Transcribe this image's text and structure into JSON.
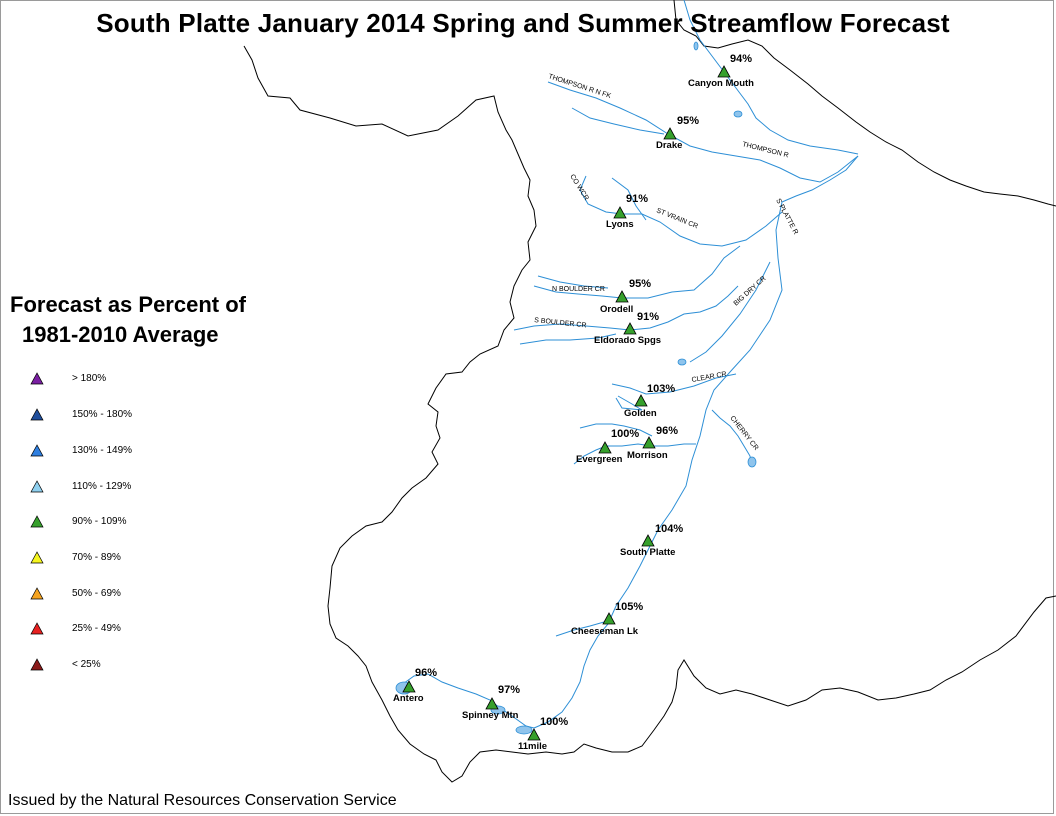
{
  "title": "South Platte January 2014 Spring and Summer Streamflow Forecast",
  "legend": {
    "title_line1": "Forecast as Percent of",
    "title_line2": "1981-2010 Average",
    "items": [
      {
        "label": "> 180%",
        "color": "#7a1fa2"
      },
      {
        "label": "150% - 180%",
        "color": "#1f4e9c"
      },
      {
        "label": "130% - 149%",
        "color": "#2f7fe0"
      },
      {
        "label": "110% - 129%",
        "color": "#8fd0ef"
      },
      {
        "label": "90% - 109%",
        "color": "#36a02c"
      },
      {
        "label": "70% - 89%",
        "color": "#f5f51f"
      },
      {
        "label": "50% - 69%",
        "color": "#f5a31f"
      },
      {
        "label": "25% - 49%",
        "color": "#e62020"
      },
      {
        "label": "< 25%",
        "color": "#8a1a1a"
      }
    ]
  },
  "sites": [
    {
      "name": "Canyon Mouth",
      "percent": "94%"
    },
    {
      "name": "Drake",
      "percent": "95%"
    },
    {
      "name": "Lyons",
      "percent": "91%"
    },
    {
      "name": "Orodell",
      "percent": "95%"
    },
    {
      "name": "Eldorado Spgs",
      "percent": "91%"
    },
    {
      "name": "Golden",
      "percent": "103%"
    },
    {
      "name": "Evergreen",
      "percent": "100%"
    },
    {
      "name": "Morrison",
      "percent": "96%"
    },
    {
      "name": "South Platte",
      "percent": "104%"
    },
    {
      "name": "Cheeseman Lk",
      "percent": "105%"
    },
    {
      "name": "Antero",
      "percent": "96%"
    },
    {
      "name": "Spinney Mtn",
      "percent": "97%"
    },
    {
      "name": "11mile",
      "percent": "100%"
    }
  ],
  "rivers": [
    {
      "name": "THOMPSON R N FK"
    },
    {
      "name": "THOMPSON R"
    },
    {
      "name": "CO WCR"
    },
    {
      "name": "ST VRAIN CR"
    },
    {
      "name": "S PLATTE R"
    },
    {
      "name": "N BOULDER CR"
    },
    {
      "name": "S BOULDER CR"
    },
    {
      "name": "BIG DRY CR"
    },
    {
      "name": "CLEAR CR"
    },
    {
      "name": "CHERRY CR"
    }
  ],
  "colors": {
    "river": "#2d8fd6",
    "basin_boundary": "#000000",
    "lake": "#8fc4ec",
    "site_symbol": "#36a02c"
  },
  "footer": "Issued by the Natural Resources Conservation Service"
}
